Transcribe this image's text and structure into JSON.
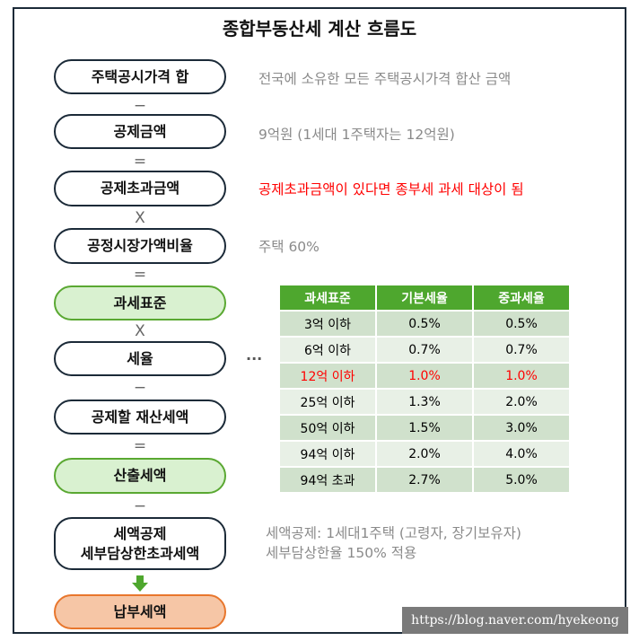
{
  "title": "종합부동산세 계산 흐름도",
  "steps": [
    {
      "label": "주택공시가격 합",
      "op_after": "−",
      "desc": "전국에 소유한 모든 주택공시가격 합산 금액"
    },
    {
      "label": "공제금액",
      "op_after": "=",
      "desc": "9억원 (1세대 1주택자는 12억원)"
    },
    {
      "label": "공제초과금액",
      "op_after": "X",
      "desc": "공제초과금액이 있다면 종부세 과세 대상이 됨"
    },
    {
      "label": "공정시장가액비율",
      "op_after": "=",
      "desc": "주택 60%"
    },
    {
      "label": "과세표준",
      "op_after": "X"
    },
    {
      "label": "세율",
      "op_after": "−",
      "connector": "···"
    },
    {
      "label": "공제할 재산세액",
      "op_after": "="
    },
    {
      "label": "산출세액",
      "op_after": "−"
    },
    {
      "label_line1": "세액공제",
      "label_line2": "세부담상한초과세액",
      "desc_line1": "세액공제: 1세대1주택 (고령자, 장기보유자)",
      "desc_line2": "세부담상한율 150% 적용"
    },
    {
      "label": "납부세액"
    }
  ],
  "rate_table": {
    "headers": [
      "과세표준",
      "기본세율",
      "중과세율"
    ],
    "rows": [
      [
        "3억 이하",
        "0.5%",
        "0.5%"
      ],
      [
        "6억 이하",
        "0.7%",
        "0.7%"
      ],
      [
        "12억 이하",
        "1.0%",
        "1.0%"
      ],
      [
        "25억 이하",
        "1.3%",
        "2.0%"
      ],
      [
        "50억 이하",
        "1.5%",
        "3.0%"
      ],
      [
        "94억 이하",
        "2.0%",
        "4.0%"
      ],
      [
        "94억 초과",
        "2.7%",
        "5.0%"
      ]
    ],
    "highlight_row": 2
  },
  "watermark": "https://blog.naver.com/hyekeong",
  "colors": {
    "green": "#4ea72e",
    "orange": "#e8762c",
    "red": "#ff0000",
    "navy": "#1b2a38"
  }
}
